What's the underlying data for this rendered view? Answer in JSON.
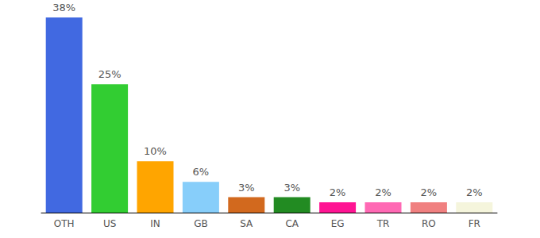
{
  "chart_data": {
    "type": "bar",
    "categories": [
      "OTH",
      "US",
      "IN",
      "GB",
      "SA",
      "CA",
      "EG",
      "TR",
      "RO",
      "FR"
    ],
    "values": [
      38,
      25,
      10,
      6,
      3,
      3,
      2,
      2,
      2,
      2
    ],
    "value_labels": [
      "38%",
      "25%",
      "10%",
      "6%",
      "3%",
      "3%",
      "2%",
      "2%",
      "2%",
      "2%"
    ],
    "colors": [
      "#4169e1",
      "#32cd32",
      "#ffa500",
      "#87cefa",
      "#d2691e",
      "#228b22",
      "#ff1493",
      "#ff69b4",
      "#f08080",
      "#f5f5dc"
    ],
    "ylim": [
      0,
      38
    ],
    "grid": false,
    "data_labels": true,
    "tick_labels": "x"
  }
}
